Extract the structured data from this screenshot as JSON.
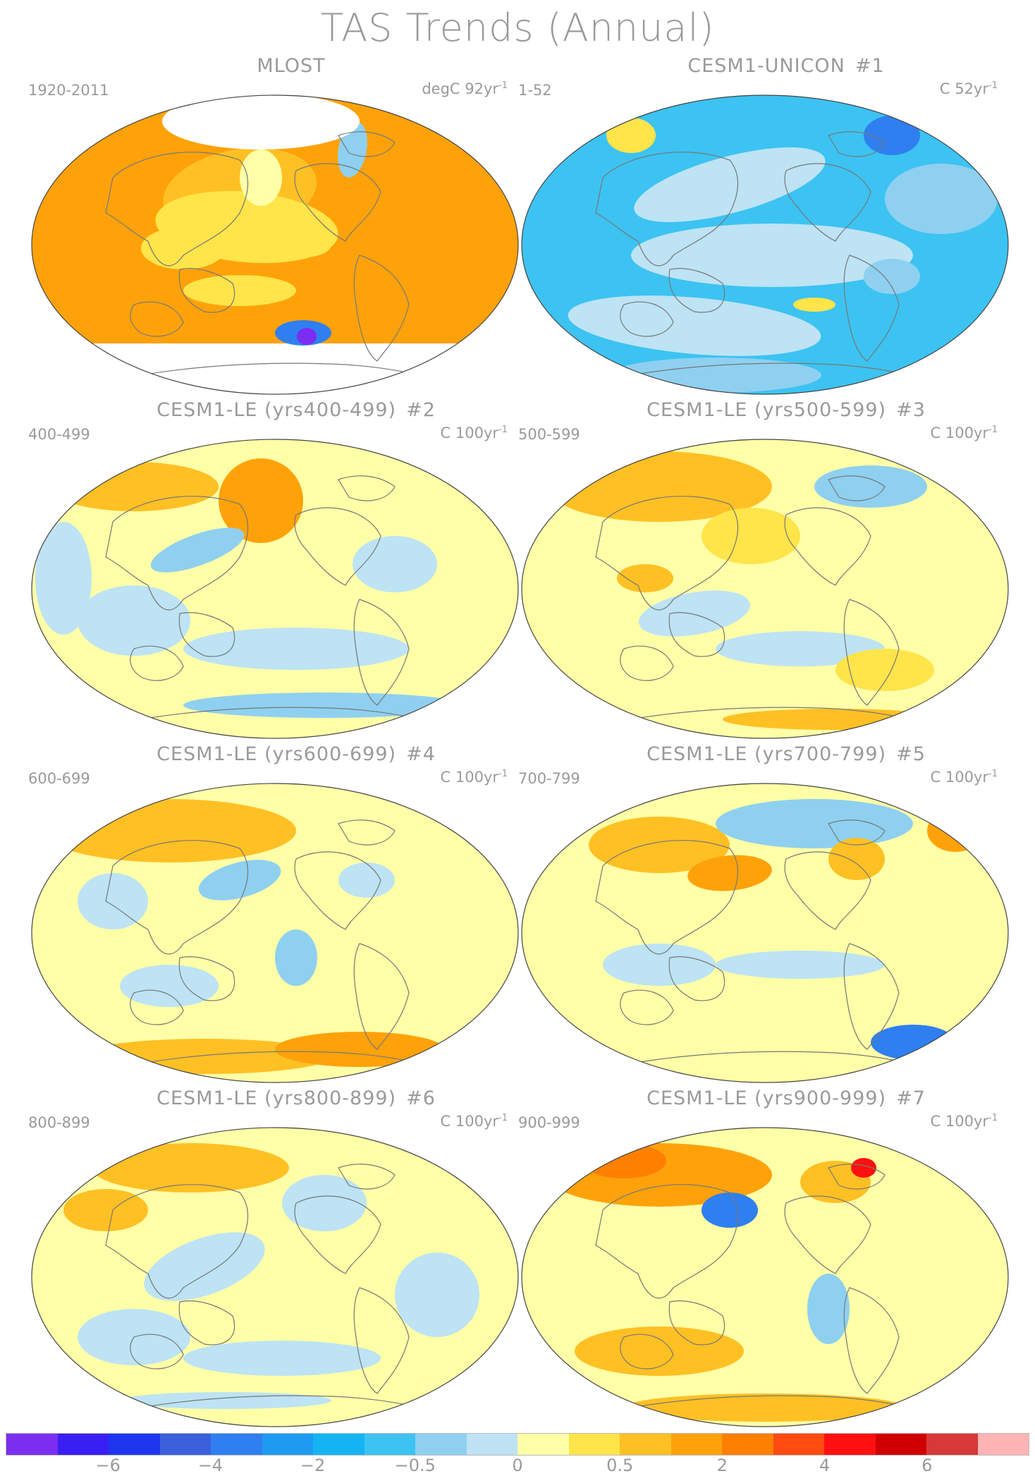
{
  "title": "TAS Trends (Annual)",
  "panels": [
    {
      "name": "MLOST",
      "tag": "",
      "period": "1920-2011",
      "units": "degC 92yr",
      "units_exp": "-1",
      "pattern": "obs"
    },
    {
      "name": "CESM1-UNICON",
      "tag": "#1",
      "period": "1-52",
      "units": "C 52yr",
      "units_exp": "-1",
      "pattern": "cool"
    },
    {
      "name": "CESM1-LE (yrs400-499)",
      "tag": "#2",
      "period": "400-499",
      "units": "C 100yr",
      "units_exp": "-1",
      "pattern": "mixA"
    },
    {
      "name": "CESM1-LE (yrs500-599)",
      "tag": "#3",
      "period": "500-599",
      "units": "C 100yr",
      "units_exp": "-1",
      "pattern": "mixB"
    },
    {
      "name": "CESM1-LE (yrs600-699)",
      "tag": "#4",
      "period": "600-699",
      "units": "C 100yr",
      "units_exp": "-1",
      "pattern": "mixC"
    },
    {
      "name": "CESM1-LE (yrs700-799)",
      "tag": "#5",
      "period": "700-799",
      "units": "C 100yr",
      "units_exp": "-1",
      "pattern": "mixD"
    },
    {
      "name": "CESM1-LE (yrs800-899)",
      "tag": "#6",
      "period": "800-899",
      "units": "C 100yr",
      "units_exp": "-1",
      "pattern": "mixE"
    },
    {
      "name": "CESM1-LE (yrs900-999)",
      "tag": "#7",
      "period": "900-999",
      "units": "C 100yr",
      "units_exp": "-1",
      "pattern": "mixF"
    }
  ],
  "colorbar": {
    "colors": [
      "#7b2ef0",
      "#3a1ff2",
      "#1e35ee",
      "#3c5fdc",
      "#2f7ff0",
      "#1e9bf0",
      "#14b4f2",
      "#3cc3f2",
      "#8fd0f0",
      "#bde3f4",
      "#ffffa8",
      "#ffe44a",
      "#ffc024",
      "#ffa20a",
      "#ff8000",
      "#ff4a10",
      "#ff1010",
      "#d00000",
      "#d83838",
      "#ffb4b4"
    ],
    "labels": [
      "-6",
      "-4",
      "-2",
      "-0.5",
      "0",
      "0.5",
      "2",
      "4",
      "6"
    ]
  }
}
